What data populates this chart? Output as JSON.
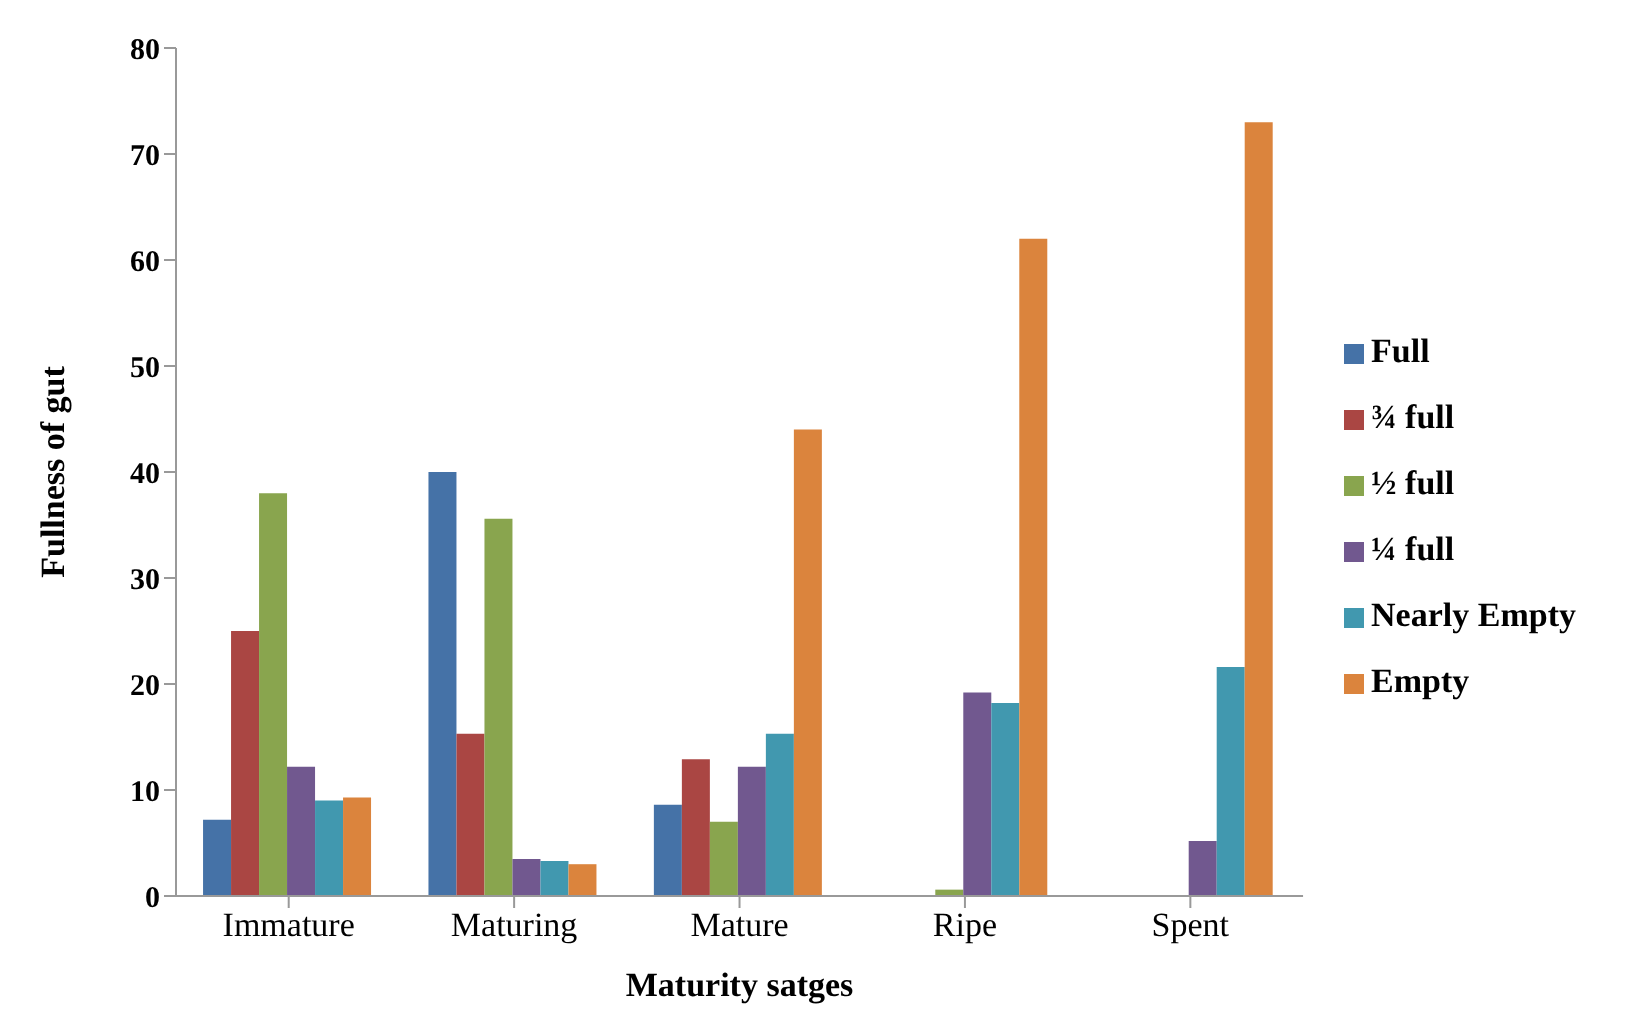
{
  "chart_data": {
    "type": "bar",
    "xlabel": "Maturity satges",
    "ylabel": "Fullness of gut",
    "categories": [
      "Immature",
      "Maturing",
      "Mature",
      "Ripe",
      "Spent"
    ],
    "series": [
      {
        "name": "Full",
        "color": "#4572a7",
        "values": [
          7.2,
          40,
          8.6,
          0,
          0
        ]
      },
      {
        "name": "¾ full",
        "color": "#aa4643",
        "values": [
          25,
          15.3,
          12.9,
          0,
          0
        ]
      },
      {
        "name": "½ full",
        "color": "#89a54e",
        "values": [
          38,
          35.6,
          7,
          0.6,
          0
        ]
      },
      {
        "name": "¼ full",
        "color": "#71588f",
        "values": [
          12.2,
          3.5,
          12.2,
          19.2,
          5.2
        ]
      },
      {
        "name": "Nearly Empty",
        "color": "#4198af",
        "values": [
          9,
          3.3,
          15.3,
          18.2,
          21.6
        ]
      },
      {
        "name": "Empty",
        "color": "#db843d",
        "values": [
          9.3,
          3,
          44,
          62,
          73
        ]
      }
    ],
    "ylim": [
      0,
      80
    ],
    "yticks": [
      0,
      10,
      20,
      30,
      40,
      50,
      60,
      70,
      80
    ],
    "grid": false,
    "legend": "right"
  }
}
